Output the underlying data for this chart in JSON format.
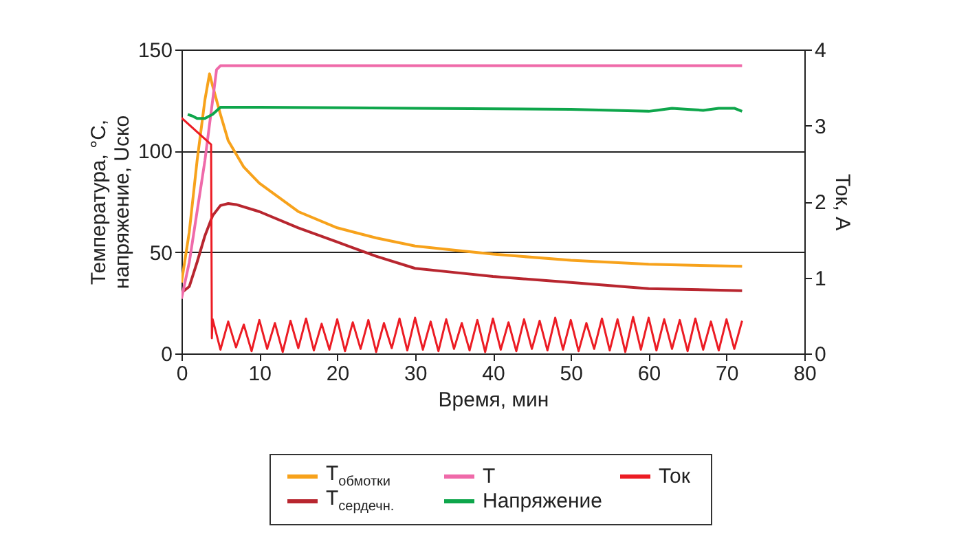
{
  "chart_data": {
    "type": "line",
    "xlabel": "Время, мин",
    "ylabel": "Температура, °C, напряжение, Uско",
    "y2label": "Ток, А",
    "xlim": [
      0,
      80
    ],
    "xticks": [
      0,
      10,
      20,
      30,
      40,
      50,
      60,
      70,
      80
    ],
    "ylim": [
      0,
      150
    ],
    "yticks": [
      0,
      50,
      100,
      150
    ],
    "y2lim": [
      0,
      4
    ],
    "y2ticks": [
      0,
      1,
      2,
      3,
      4
    ],
    "grid": "y",
    "legend": "bottom",
    "line_style": "solid",
    "marker": "none",
    "series": [
      {
        "name": "T$_{обмотки}$",
        "color": "#f7a21b",
        "x": [
          0,
          1,
          2,
          3,
          3.6,
          4,
          5,
          6,
          8,
          10,
          15,
          20,
          25,
          30,
          35,
          40,
          50,
          60,
          72
        ],
        "values": [
          35,
          60,
          95,
          125,
          138,
          132,
          118,
          105,
          92,
          84,
          70,
          62,
          57,
          53,
          51,
          49,
          46,
          44,
          43
        ]
      },
      {
        "name": "T$_{сердечн.}$",
        "color": "#b8262f",
        "x": [
          0,
          1,
          2,
          3,
          4,
          5,
          6,
          7,
          10,
          15,
          20,
          25,
          30,
          35,
          40,
          50,
          60,
          72
        ],
        "values": [
          30,
          33,
          45,
          58,
          68,
          73,
          74,
          73.5,
          70,
          62,
          55,
          48,
          42,
          40,
          38,
          35,
          32,
          31
        ]
      },
      {
        "name": "T",
        "color": "#ef6aa9",
        "x": [
          0,
          1,
          2,
          3,
          4,
          4.5,
          5,
          72
        ],
        "values": [
          27,
          45,
          70,
          95,
          125,
          140,
          142,
          142
        ]
      },
      {
        "name": "Напряжение",
        "color": "#0ea64b",
        "x": [
          0.8,
          1.5,
          2,
          3,
          4,
          5,
          10,
          30,
          50,
          60,
          61,
          63,
          65,
          67,
          69,
          71,
          72
        ],
        "values": [
          118,
          117,
          116,
          116,
          118,
          121.5,
          121.5,
          121,
          120.5,
          119.5,
          120,
          121,
          120.5,
          120,
          121,
          121,
          119.5
        ]
      },
      {
        "name": "Ток",
        "color": "#ec1c24",
        "axis": "y2",
        "x": [
          0,
          3.8,
          3.9,
          4,
          5,
          6,
          7,
          8,
          9,
          10,
          11,
          12,
          13,
          14,
          15,
          16,
          17,
          18,
          19,
          20,
          21,
          22,
          23,
          24,
          25,
          26,
          27,
          28,
          29,
          30,
          31,
          32,
          33,
          34,
          35,
          36,
          37,
          38,
          39,
          40,
          41,
          42,
          43,
          44,
          45,
          46,
          47,
          48,
          49,
          50,
          51,
          52,
          53,
          54,
          55,
          56,
          57,
          58,
          59,
          60,
          61,
          62,
          63,
          64,
          65,
          66,
          67,
          68,
          69,
          70,
          71,
          72
        ],
        "values": [
          3.1,
          2.75,
          0.2,
          0.45,
          0.05,
          0.42,
          0.08,
          0.38,
          0.03,
          0.44,
          0.06,
          0.4,
          0.02,
          0.43,
          0.07,
          0.46,
          0.04,
          0.39,
          0.05,
          0.45,
          0.03,
          0.41,
          0.06,
          0.44,
          0.02,
          0.4,
          0.07,
          0.46,
          0.04,
          0.47,
          0.05,
          0.42,
          0.03,
          0.45,
          0.06,
          0.4,
          0.04,
          0.44,
          0.02,
          0.46,
          0.05,
          0.41,
          0.03,
          0.45,
          0.06,
          0.43,
          0.04,
          0.47,
          0.05,
          0.44,
          0.03,
          0.4,
          0.06,
          0.46,
          0.04,
          0.45,
          0.02,
          0.48,
          0.05,
          0.47,
          0.04,
          0.45,
          0.06,
          0.44,
          0.03,
          0.46,
          0.05,
          0.42,
          0.04,
          0.45,
          0.06,
          0.43
        ]
      }
    ]
  }
}
